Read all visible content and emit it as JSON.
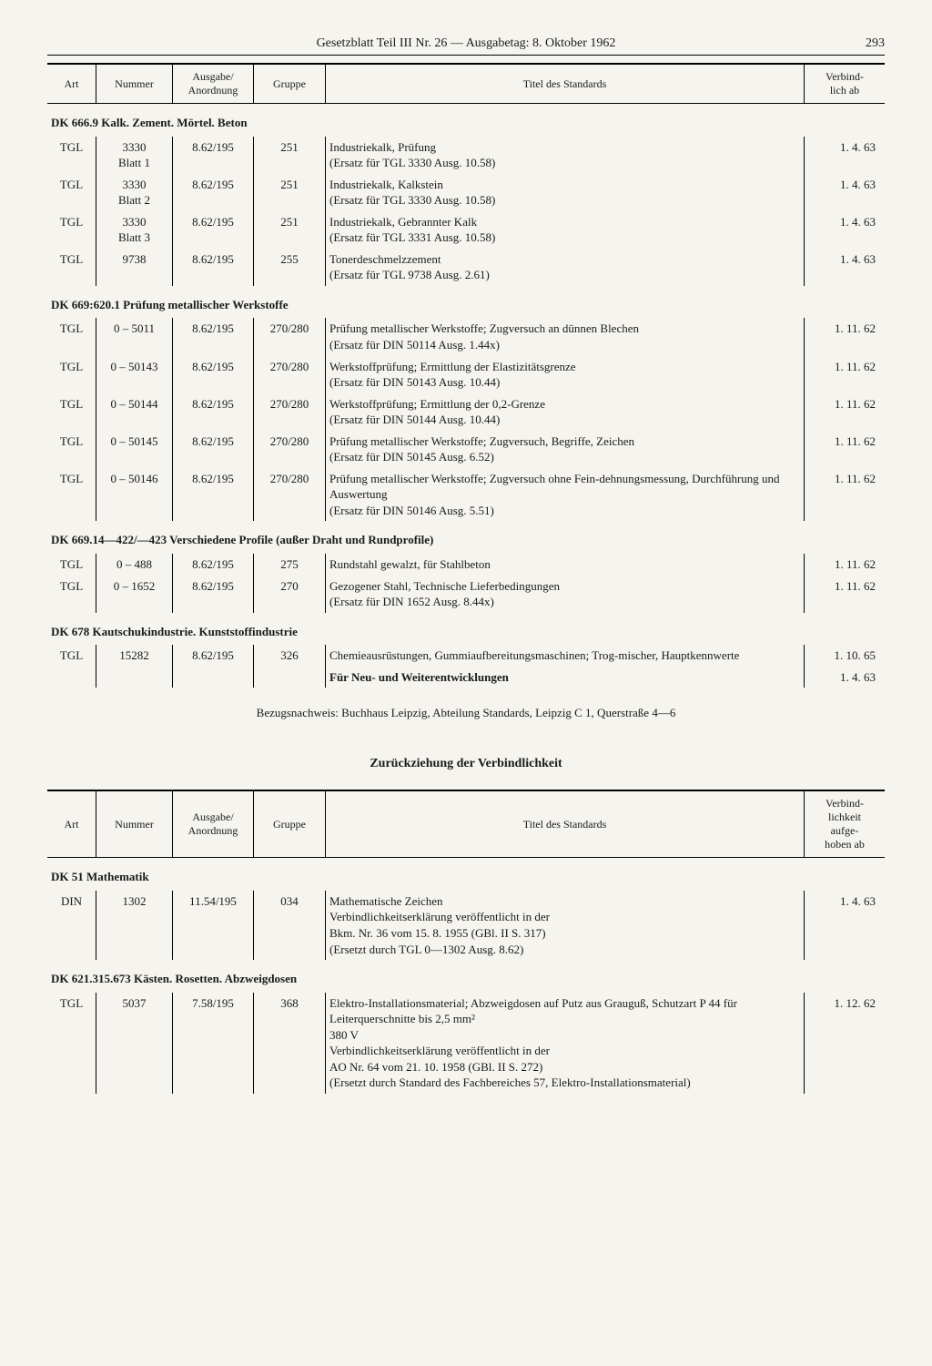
{
  "header": {
    "title": "Gesetzblatt Teil III Nr. 26 — Ausgabetag: 8. Oktober 1962",
    "page_number": "293"
  },
  "table1": {
    "columns": {
      "art": "Art",
      "nummer": "Nummer",
      "ausgabe": "Ausgabe/\nAnordnung",
      "gruppe": "Gruppe",
      "titel": "Titel des Standards",
      "verbind": "Verbind-\nlich ab"
    },
    "sections": [
      {
        "heading": "DK 666.9 Kalk. Zement. Mörtel. Beton",
        "rows": [
          {
            "art": "TGL",
            "nummer": "3330\nBlatt 1",
            "ausgabe": "8.62/195",
            "gruppe": "251",
            "titel": "Industriekalk, Prüfung\n(Ersatz für TGL 3330 Ausg. 10.58)",
            "verbind": "1. 4. 63"
          },
          {
            "art": "TGL",
            "nummer": "3330\nBlatt 2",
            "ausgabe": "8.62/195",
            "gruppe": "251",
            "titel": "Industriekalk, Kalkstein\n(Ersatz für TGL 3330 Ausg. 10.58)",
            "verbind": "1. 4. 63"
          },
          {
            "art": "TGL",
            "nummer": "3330\nBlatt 3",
            "ausgabe": "8.62/195",
            "gruppe": "251",
            "titel": "Industriekalk, Gebrannter Kalk\n(Ersatz für TGL 3331 Ausg. 10.58)",
            "verbind": "1. 4. 63"
          },
          {
            "art": "TGL",
            "nummer": "9738",
            "ausgabe": "8.62/195",
            "gruppe": "255",
            "titel": "Tonerdeschmelzzement\n(Ersatz für TGL 9738 Ausg. 2.61)",
            "verbind": "1. 4. 63"
          }
        ]
      },
      {
        "heading": "DK 669:620.1 Prüfung metallischer Werkstoffe",
        "rows": [
          {
            "art": "TGL",
            "nummer": "0 – 5011",
            "ausgabe": "8.62/195",
            "gruppe": "270/280",
            "titel": "Prüfung metallischer Werkstoffe; Zugversuch an dünnen Blechen\n(Ersatz für DIN 50114 Ausg. 1.44x)",
            "verbind": "1. 11. 62"
          },
          {
            "art": "TGL",
            "nummer": "0 – 50143",
            "ausgabe": "8.62/195",
            "gruppe": "270/280",
            "titel": "Werkstoffprüfung; Ermittlung der Elastizitätsgrenze\n(Ersatz für DIN 50143 Ausg. 10.44)",
            "verbind": "1. 11. 62"
          },
          {
            "art": "TGL",
            "nummer": "0 – 50144",
            "ausgabe": "8.62/195",
            "gruppe": "270/280",
            "titel": "Werkstoffprüfung; Ermittlung der 0,2-Grenze\n(Ersatz für DIN 50144 Ausg. 10.44)",
            "verbind": "1. 11. 62"
          },
          {
            "art": "TGL",
            "nummer": "0 – 50145",
            "ausgabe": "8.62/195",
            "gruppe": "270/280",
            "titel": "Prüfung metallischer Werkstoffe; Zugversuch, Begriffe, Zeichen\n(Ersatz für DIN 50145 Ausg. 6.52)",
            "verbind": "1. 11. 62"
          },
          {
            "art": "TGL",
            "nummer": "0 – 50146",
            "ausgabe": "8.62/195",
            "gruppe": "270/280",
            "titel": "Prüfung metallischer Werkstoffe; Zugversuch ohne Fein-dehnungsmessung, Durchführung und Auswertung\n(Ersatz für DIN 50146 Ausg. 5.51)",
            "verbind": "1. 11. 62"
          }
        ]
      },
      {
        "heading": "DK 669.14—422/—423 Verschiedene Profile (außer Draht und Rundprofile)",
        "rows": [
          {
            "art": "TGL",
            "nummer": "0 – 488",
            "ausgabe": "8.62/195",
            "gruppe": "275",
            "titel": "Rundstahl gewalzt, für Stahlbeton",
            "verbind": "1. 11. 62"
          },
          {
            "art": "TGL",
            "nummer": "0 – 1652",
            "ausgabe": "8.62/195",
            "gruppe": "270",
            "titel": "Gezogener Stahl, Technische Lieferbedingungen\n(Ersatz für DIN 1652 Ausg. 8.44x)",
            "verbind": "1. 11. 62"
          }
        ]
      },
      {
        "heading": "DK 678 Kautschukindustrie. Kunststoffindustrie",
        "rows": [
          {
            "art": "TGL",
            "nummer": "15282",
            "ausgabe": "8.62/195",
            "gruppe": "326",
            "titel": "Chemieausrüstungen, Gummiaufbereitungsmaschinen; Trog-mischer, Hauptkennwerte",
            "verbind": "1. 10. 65",
            "extra_titel": "Für Neu- und Weiterentwicklungen",
            "extra_verbind": "1. 4. 63"
          }
        ]
      }
    ]
  },
  "footnote": "Bezugsnachweis: Buchhaus Leipzig, Abteilung Standards, Leipzig C 1, Querstraße 4—6",
  "subtitle": "Zurückziehung der Verbindlichkeit",
  "table2": {
    "columns": {
      "art": "Art",
      "nummer": "Nummer",
      "ausgabe": "Ausgabe/\nAnordnung",
      "gruppe": "Gruppe",
      "titel": "Titel des Standards",
      "verbind": "Verbind-\nlichkeit\naufge-\nhoben ab"
    },
    "sections": [
      {
        "heading": "DK 51 Mathematik",
        "rows": [
          {
            "art": "DIN",
            "nummer": "1302",
            "ausgabe": "11.54/195",
            "gruppe": "034",
            "titel": "Mathematische Zeichen\nVerbindlichkeitserklärung veröffentlicht in der\nBkm. Nr. 36 vom 15. 8. 1955 (GBl. II S. 317)\n(Ersetzt durch TGL 0—1302 Ausg. 8.62)",
            "verbind": "1. 4. 63"
          }
        ]
      },
      {
        "heading": "DK 621.315.673 Kästen. Rosetten. Abzweigdosen",
        "rows": [
          {
            "art": "TGL",
            "nummer": "5037",
            "ausgabe": "7.58/195",
            "gruppe": "368",
            "titel": "Elektro-Installationsmaterial; Abzweigdosen auf Putz aus Grauguß, Schutzart P 44 für Leiterquerschnitte bis 2,5 mm²\n380 V\nVerbindlichkeitserklärung veröffentlicht in der\nAO Nr. 64 vom 21. 10. 1958 (GBl. II S. 272)\n(Ersetzt durch Standard des Fachbereiches 57, Elektro-Installationsmaterial)",
            "verbind": "1. 12. 62"
          }
        ]
      }
    ]
  }
}
